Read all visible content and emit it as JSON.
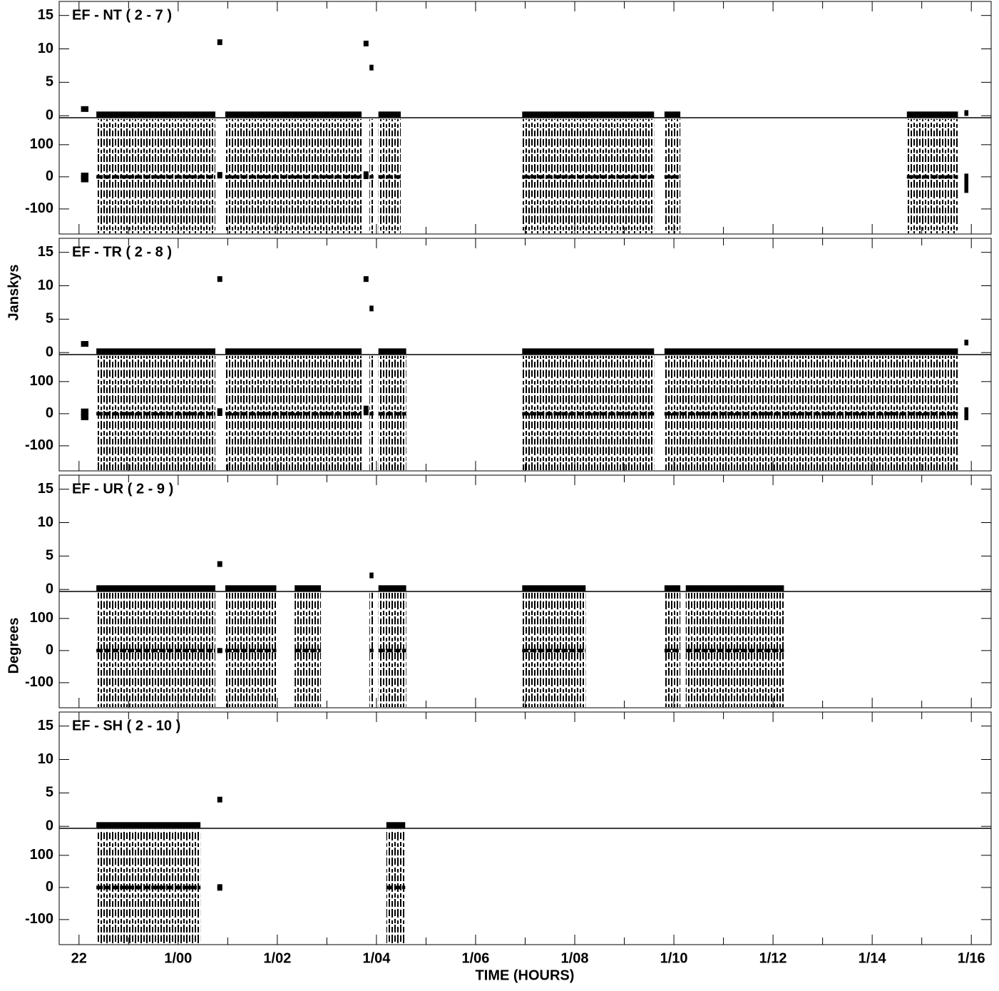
{
  "chart_data": {
    "type": "vplot",
    "xlabel": "TIME (HOURS)",
    "ylabel_amp": "Janskys",
    "ylabel_phase": "Degrees",
    "xlim": [
      21.6,
      40.4
    ],
    "xticks": [
      22,
      {
        "value": 24,
        "label": "1/00"
      },
      {
        "value": 26,
        "label": "1/02"
      },
      {
        "value": 28,
        "label": "1/04"
      },
      {
        "value": 30,
        "label": "1/06"
      },
      {
        "value": 32,
        "label": "1/08"
      },
      {
        "value": 34,
        "label": "1/10"
      },
      {
        "value": 36,
        "label": "1/12"
      },
      {
        "value": 38,
        "label": "1/14"
      },
      {
        "value": 40,
        "label": "1/16"
      }
    ],
    "xminor": [
      23,
      25,
      27,
      29,
      31,
      33,
      35,
      37,
      39
    ],
    "amp_ylim": [
      -0.3,
      17.1
    ],
    "amp_yticks": [
      0,
      5,
      10,
      15
    ],
    "phase_ylim": [
      -178,
      184
    ],
    "phase_yticks": [
      -100,
      0,
      100
    ],
    "color": "#000000",
    "baselines": [
      {
        "label": "EF - NT ( 2 - 7 )",
        "scans": [
          {
            "start": 22.04,
            "end": 22.19,
            "amp": 1.0,
            "phase": -2,
            "phase_spread": 15
          },
          {
            "start": 22.35,
            "end": 24.75,
            "amp": 0.2,
            "phase": 0,
            "phase_spread": 180
          },
          {
            "start": 24.79,
            "end": 24.89,
            "amp": 11.0,
            "phase": 5,
            "phase_spread": 10
          },
          {
            "start": 24.95,
            "end": 27.7,
            "amp": 0.2,
            "phase": 0,
            "phase_spread": 180
          },
          {
            "start": 27.74,
            "end": 27.84,
            "amp": 10.8,
            "phase": 5,
            "phase_spread": 12
          },
          {
            "start": 27.86,
            "end": 27.94,
            "amp": 7.2,
            "phase": 0,
            "phase_spread": 180
          },
          {
            "start": 28.04,
            "end": 28.49,
            "amp": 0.2,
            "phase": 0,
            "phase_spread": 180
          },
          {
            "start": 30.94,
            "end": 33.6,
            "amp": 0.2,
            "phase": 0,
            "phase_spread": 180
          },
          {
            "start": 33.81,
            "end": 34.13,
            "amp": 0.2,
            "phase": 0,
            "phase_spread": 180
          },
          {
            "start": 38.7,
            "end": 39.73,
            "amp": 0.2,
            "phase": 0,
            "phase_spread": 180
          },
          {
            "start": 39.86,
            "end": 39.94,
            "amp": 0.4,
            "phase": -20,
            "phase_spread": 30
          }
        ]
      },
      {
        "label": "EF - TR ( 2 - 8 )",
        "scans": [
          {
            "start": 22.04,
            "end": 22.19,
            "amp": 1.3,
            "phase": -2,
            "phase_spread": 18
          },
          {
            "start": 22.35,
            "end": 24.75,
            "amp": 0.2,
            "phase": 0,
            "phase_spread": 180
          },
          {
            "start": 24.79,
            "end": 24.89,
            "amp": 11.0,
            "phase": 5,
            "phase_spread": 12
          },
          {
            "start": 24.95,
            "end": 27.7,
            "amp": 0.2,
            "phase": 0,
            "phase_spread": 180
          },
          {
            "start": 27.74,
            "end": 27.84,
            "amp": 11.0,
            "phase": 10,
            "phase_spread": 15
          },
          {
            "start": 27.86,
            "end": 27.94,
            "amp": 6.6,
            "phase": 0,
            "phase_spread": 180
          },
          {
            "start": 28.04,
            "end": 28.6,
            "amp": 0.2,
            "phase": 0,
            "phase_spread": 180
          },
          {
            "start": 30.94,
            "end": 33.6,
            "amp": 0.2,
            "phase": 0,
            "phase_spread": 180
          },
          {
            "start": 33.81,
            "end": 39.73,
            "amp": 0.2,
            "phase": 0,
            "phase_spread": 180
          },
          {
            "start": 39.86,
            "end": 39.94,
            "amp": 1.5,
            "phase": 0,
            "phase_spread": 20
          }
        ]
      },
      {
        "label": "EF - UR ( 2 - 9 )",
        "scans": [
          {
            "start": 22.35,
            "end": 24.75,
            "amp": 0.2,
            "phase": 0,
            "phase_spread": 180
          },
          {
            "start": 24.79,
            "end": 24.89,
            "amp": 3.8,
            "phase": 0,
            "phase_spread": 8
          },
          {
            "start": 24.95,
            "end": 25.98,
            "amp": 0.2,
            "phase": 0,
            "phase_spread": 180
          },
          {
            "start": 26.35,
            "end": 26.88,
            "amp": 0.2,
            "phase": 0,
            "phase_spread": 180
          },
          {
            "start": 27.86,
            "end": 27.94,
            "amp": 2.1,
            "phase": 0,
            "phase_spread": 180
          },
          {
            "start": 28.04,
            "end": 28.6,
            "amp": 0.2,
            "phase": 0,
            "phase_spread": 180
          },
          {
            "start": 30.94,
            "end": 32.22,
            "amp": 0.2,
            "phase": 0,
            "phase_spread": 180
          },
          {
            "start": 33.81,
            "end": 34.13,
            "amp": 0.2,
            "phase": 0,
            "phase_spread": 180
          },
          {
            "start": 34.24,
            "end": 36.22,
            "amp": 0.2,
            "phase": 0,
            "phase_spread": 180
          }
        ]
      },
      {
        "label": "EF - SH ( 2 - 10 )",
        "scans": [
          {
            "start": 22.35,
            "end": 24.45,
            "amp": 0.2,
            "phase": 0,
            "phase_spread": 180
          },
          {
            "start": 24.79,
            "end": 24.89,
            "amp": 4.0,
            "phase": 0,
            "phase_spread": 10
          },
          {
            "start": 28.2,
            "end": 28.58,
            "amp": 0.2,
            "phase": 0,
            "phase_spread": 180
          }
        ]
      }
    ]
  }
}
